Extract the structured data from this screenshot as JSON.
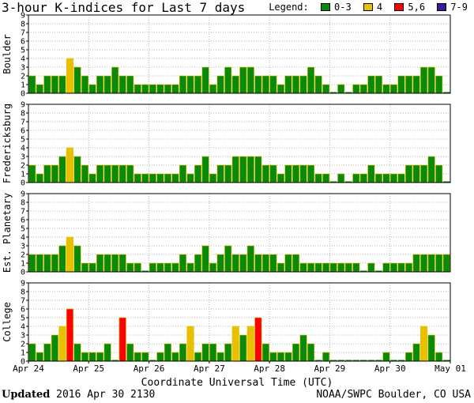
{
  "title": "3-hour K-indices for Last 7 days",
  "legend": {
    "label": "Legend:",
    "items": [
      {
        "label": "0-3",
        "color": "#0a8a0a"
      },
      {
        "label": "4",
        "color": "#e8c000"
      },
      {
        "label": "5,6",
        "color": "#ff0000"
      },
      {
        "label": "7-9",
        "color": "#3a1a9a"
      }
    ]
  },
  "x_title": "Coordinate Universal Time (UTC)",
  "footer": {
    "updated_label": "Updated",
    "updated_value": "2016 Apr 30 2130",
    "source": "NOAA/SWPC Boulder, CO USA"
  },
  "chart_data": {
    "type": "bar",
    "x_tick_labels": [
      "Apr 24",
      "Apr 25",
      "Apr 26",
      "Apr 27",
      "Apr 28",
      "Apr 29",
      "Apr 30",
      "May 01"
    ],
    "ylim": [
      0,
      9
    ],
    "y_ticks": [
      0,
      1,
      2,
      3,
      4,
      5,
      6,
      7,
      8,
      9
    ],
    "color_thresholds": {
      "green": "0-3",
      "yellow": "4",
      "red": "5,6",
      "purple": "7-9"
    },
    "panels": [
      {
        "name": "Boulder",
        "values": [
          2,
          1,
          2,
          2,
          2,
          4,
          3,
          2,
          1,
          2,
          2,
          3,
          2,
          2,
          1,
          1,
          1,
          1,
          1,
          1,
          2,
          2,
          2,
          3,
          1,
          2,
          3,
          2,
          3,
          3,
          2,
          2,
          2,
          1,
          2,
          2,
          2,
          3,
          2,
          1,
          0,
          1,
          0,
          1,
          1,
          2,
          2,
          1,
          1,
          2,
          2,
          2,
          3,
          3,
          2,
          0
        ]
      },
      {
        "name": "Fredericksburg",
        "values": [
          2,
          1,
          2,
          2,
          3,
          4,
          3,
          2,
          1,
          2,
          2,
          2,
          2,
          2,
          1,
          1,
          1,
          1,
          1,
          1,
          2,
          1,
          2,
          3,
          1,
          2,
          2,
          3,
          3,
          3,
          3,
          2,
          2,
          1,
          2,
          2,
          2,
          2,
          1,
          1,
          0,
          1,
          0,
          1,
          1,
          2,
          1,
          1,
          1,
          1,
          2,
          2,
          2,
          3,
          2,
          0
        ]
      },
      {
        "name": "Est. Planetary",
        "values": [
          2,
          2,
          2,
          2,
          3,
          4,
          3,
          1,
          1,
          2,
          2,
          2,
          2,
          1,
          1,
          0,
          1,
          1,
          1,
          1,
          2,
          1,
          2,
          3,
          1,
          2,
          3,
          2,
          2,
          3,
          2,
          2,
          2,
          1,
          2,
          2,
          1,
          1,
          1,
          1,
          1,
          1,
          1,
          1,
          0,
          1,
          0,
          1,
          1,
          1,
          1,
          2,
          2,
          2,
          2,
          2
        ]
      },
      {
        "name": "College",
        "values": [
          2,
          1,
          2,
          3,
          4,
          6,
          2,
          1,
          1,
          1,
          2,
          0,
          5,
          2,
          1,
          1,
          0,
          1,
          2,
          1,
          2,
          4,
          1,
          2,
          2,
          1,
          2,
          4,
          3,
          4,
          5,
          2,
          1,
          1,
          1,
          2,
          3,
          2,
          0,
          1,
          0,
          0,
          0,
          0,
          0,
          0,
          0,
          1,
          0,
          0,
          1,
          2,
          4,
          3,
          1,
          0
        ]
      }
    ]
  }
}
